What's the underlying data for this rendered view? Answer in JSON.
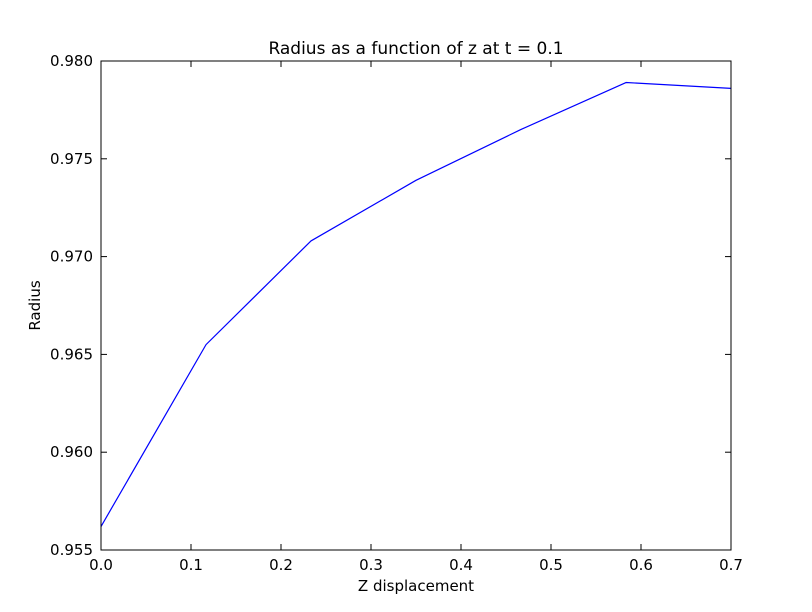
{
  "chart_data": {
    "type": "line",
    "title": "Radius as a function of z at t = 0.1",
    "xlabel": "Z displacement",
    "ylabel": "Radius",
    "xlim": [
      0.0,
      0.7
    ],
    "ylim": [
      0.955,
      0.98
    ],
    "x_ticks": [
      "0.0",
      "0.1",
      "0.2",
      "0.3",
      "0.4",
      "0.5",
      "0.6",
      "0.7"
    ],
    "y_ticks": [
      "0.955",
      "0.960",
      "0.965",
      "0.970",
      "0.975",
      "0.980"
    ],
    "grid": false,
    "series": [
      {
        "color": "#0000ff",
        "x": [
          0.0,
          0.1167,
          0.2333,
          0.35,
          0.4667,
          0.5833,
          0.7
        ],
        "y": [
          0.9562,
          0.9655,
          0.9708,
          0.9739,
          0.9765,
          0.9789,
          0.9786
        ]
      }
    ]
  }
}
